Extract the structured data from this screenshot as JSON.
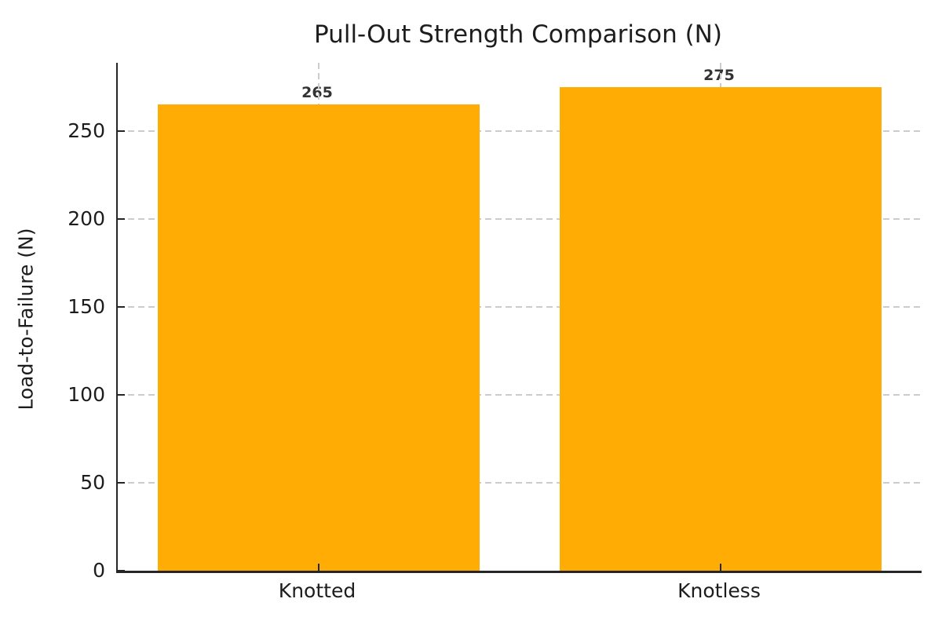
{
  "chart_data": {
    "type": "bar",
    "title": "Pull-Out Strength Comparison (N)",
    "xlabel": "",
    "ylabel": "Load-to-Failure (N)",
    "categories": [
      "Knotted",
      "Knotless"
    ],
    "values": [
      265,
      275
    ],
    "bar_value_labels": [
      "265",
      "275"
    ],
    "yticks": [
      0,
      50,
      100,
      150,
      200,
      250
    ],
    "ylim": [
      0,
      288.75
    ],
    "bar_width_fraction": 0.8,
    "grid": true,
    "grid_style": "dashed",
    "legend_position": "none",
    "colors": {
      "bar": "#FFAD05",
      "bar_value_label": "#333333",
      "axis": "#262626",
      "grid": "#cccccc",
      "text": "#1d1d1d",
      "background": "#ffffff"
    }
  }
}
